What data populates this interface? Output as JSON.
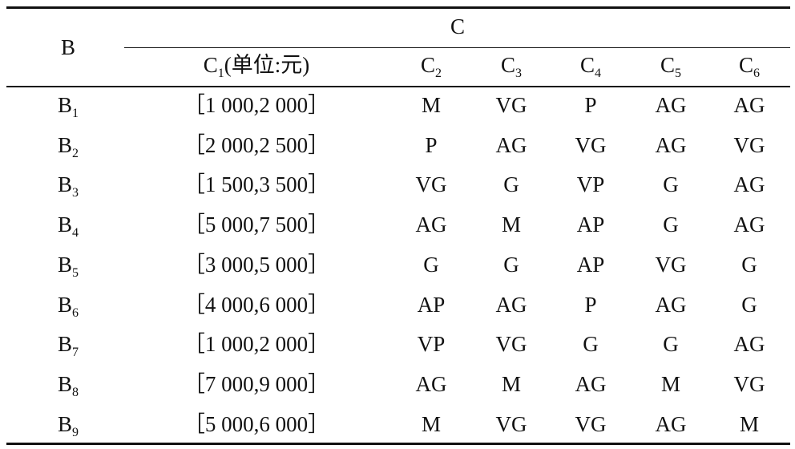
{
  "header": {
    "row_header": "B",
    "group": "C",
    "columns": [
      {
        "base": "C",
        "sub": "1",
        "suffix": "(单位:元)"
      },
      {
        "base": "C",
        "sub": "2"
      },
      {
        "base": "C",
        "sub": "3"
      },
      {
        "base": "C",
        "sub": "4"
      },
      {
        "base": "C",
        "sub": "5"
      },
      {
        "base": "C",
        "sub": "6"
      }
    ]
  },
  "rows": [
    {
      "label": {
        "base": "B",
        "sub": "1"
      },
      "cells": [
        "［1 000,2 000］",
        "M",
        "VG",
        "P",
        "AG",
        "AG"
      ]
    },
    {
      "label": {
        "base": "B",
        "sub": "2"
      },
      "cells": [
        "［2 000,2 500］",
        "P",
        "AG",
        "VG",
        "AG",
        "VG"
      ]
    },
    {
      "label": {
        "base": "B",
        "sub": "3"
      },
      "cells": [
        "［1 500,3 500］",
        "VG",
        "G",
        "VP",
        "G",
        "AG"
      ]
    },
    {
      "label": {
        "base": "B",
        "sub": "4"
      },
      "cells": [
        "［5 000,7 500］",
        "AG",
        "M",
        "AP",
        "G",
        "AG"
      ]
    },
    {
      "label": {
        "base": "B",
        "sub": "5"
      },
      "cells": [
        "［3 000,5 000］",
        "G",
        "G",
        "AP",
        "VG",
        "G"
      ]
    },
    {
      "label": {
        "base": "B",
        "sub": "6"
      },
      "cells": [
        "［4 000,6 000］",
        "AP",
        "AG",
        "P",
        "AG",
        "G"
      ]
    },
    {
      "label": {
        "base": "B",
        "sub": "7"
      },
      "cells": [
        "［1 000,2 000］",
        "VP",
        "VG",
        "G",
        "G",
        "AG"
      ]
    },
    {
      "label": {
        "base": "B",
        "sub": "8"
      },
      "cells": [
        "［7 000,9 000］",
        "AG",
        "M",
        "AG",
        "M",
        "VG"
      ]
    },
    {
      "label": {
        "base": "B",
        "sub": "9"
      },
      "cells": [
        "［5 000,6 000］",
        "M",
        "VG",
        "VG",
        "AG",
        "M"
      ]
    }
  ]
}
